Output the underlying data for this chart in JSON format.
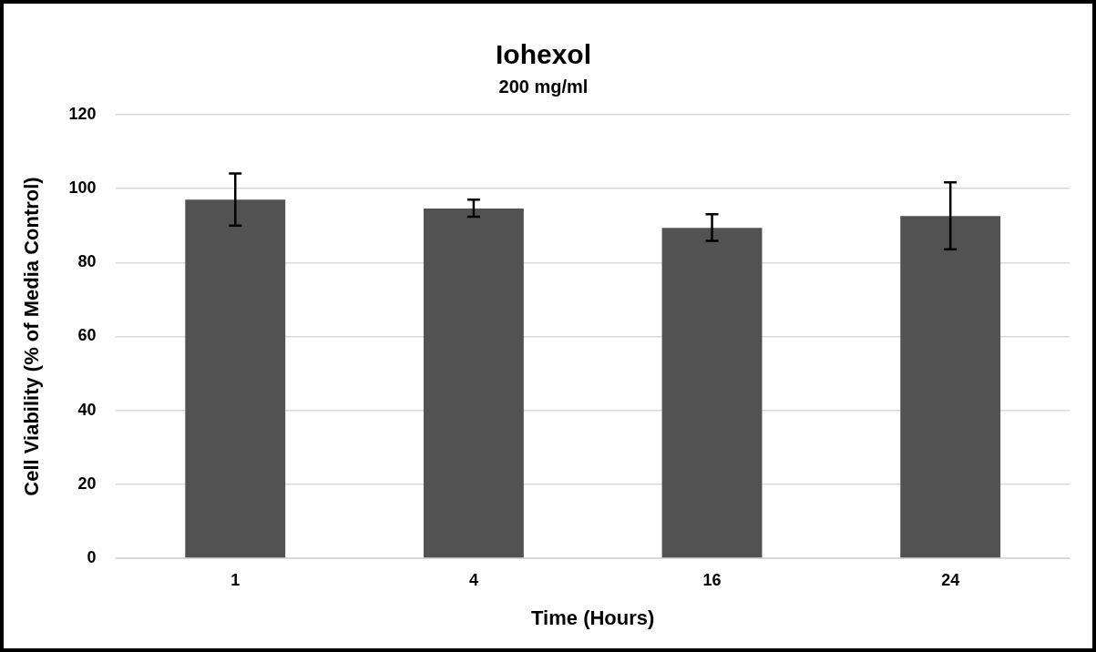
{
  "chart_data": {
    "type": "bar",
    "title": "Iohexol",
    "subtitle": "200 mg/ml",
    "xlabel": "Time (Hours)",
    "ylabel": "Cell Viability (% of Media Control)",
    "categories": [
      "1",
      "4",
      "16",
      "24"
    ],
    "values": [
      97.0,
      94.6,
      89.4,
      92.6
    ],
    "errors": [
      [
        90.0,
        104.1
      ],
      [
        92.4,
        97.0
      ],
      [
        85.9,
        93.1
      ],
      [
        83.6,
        101.7
      ]
    ],
    "color": "#525252",
    "ylim": [
      0,
      120
    ],
    "yticks": [
      0,
      20,
      40,
      60,
      80,
      100,
      120
    ],
    "grid": "y",
    "legend": false
  }
}
